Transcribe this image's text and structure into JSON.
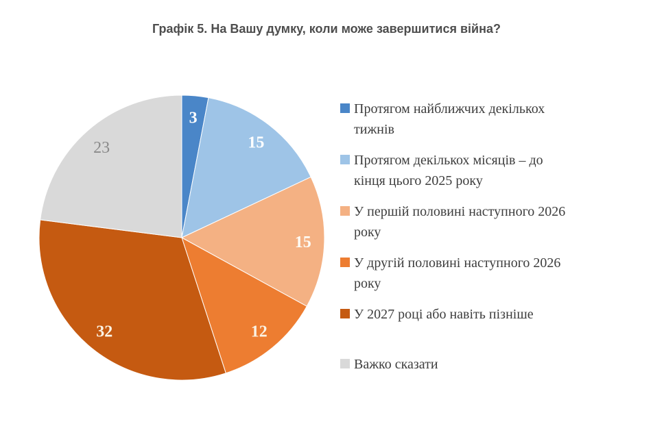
{
  "title": "Графік 5. На Вашу думку, коли може завершитися війна?",
  "chart_data": {
    "type": "pie",
    "title": "Графік 5. На Вашу думку, коли може завершитися війна?",
    "start_angle_deg": 0,
    "direction": "clockwise",
    "units": "percent",
    "legend_position": "right",
    "segments": [
      {
        "label": "Протягом найближчих декількох тижнів",
        "value": 3,
        "color": "#4a86c8",
        "label_color": "#ffffff",
        "label_weight": "bold"
      },
      {
        "label": "Протягом декількох місяців – до кінця цього 2025 року",
        "value": 15,
        "color": "#9ec4e7",
        "label_color": "#ffffff",
        "label_weight": "bold"
      },
      {
        "label": "У першій половині наступного 2026 року",
        "value": 15,
        "color": "#f4b183",
        "label_color": "#fefcf6",
        "label_weight": "bold"
      },
      {
        "label": "У другій половині наступного 2026 року",
        "value": 12,
        "color": "#ed7d31",
        "label_color": "#fbf3e4",
        "label_weight": "bold"
      },
      {
        "label": "У 2027 році або навіть пізніше",
        "value": 32,
        "color": "#c55a11",
        "label_color": "#fbf3e4",
        "label_weight": "bold"
      },
      {
        "label": "Важко сказати",
        "value": 23,
        "color": "#d9d9d9",
        "label_color": "#8a8a8a",
        "label_weight": "normal"
      }
    ]
  },
  "legend": {
    "items": [
      {
        "lines": [
          "Протягом найближчих декількох",
          "тижнів"
        ]
      },
      {
        "lines": [
          "Протягом декількох місяців – до",
          "кінця цього 2025 року"
        ]
      },
      {
        "lines": [
          "У першій половині наступного 2026",
          "року"
        ]
      },
      {
        "lines": [
          "У другій половині наступного 2026",
          "року"
        ]
      },
      {
        "lines": [
          "У 2027 році або навіть пізніше"
        ]
      },
      {
        "lines": [
          "Важко сказати"
        ]
      }
    ]
  }
}
